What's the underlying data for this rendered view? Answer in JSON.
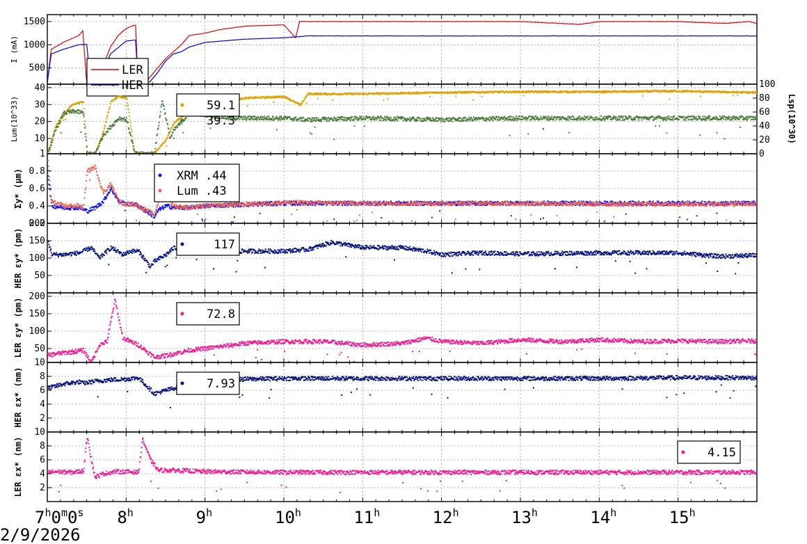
{
  "date_label": "2/9/2026",
  "x_axis": {
    "tick_bases": [
      "7",
      "8",
      "9",
      "10",
      "11",
      "12",
      "13",
      "14",
      "15"
    ],
    "first_tick_parts": [
      "7",
      "h",
      "0",
      "m",
      "0",
      "s"
    ],
    "hour_suffix": "h"
  },
  "colors": {
    "ler_current": "#d40000",
    "her_current": "#0000cc",
    "lsp": "#e0a000",
    "lum": "#4a7a3a",
    "xrm": "#1010ee",
    "lumsize": "#f06050",
    "her_navy": "#00107f",
    "ler_pink": "#f01890"
  },
  "chart_data": [
    {
      "type": "line",
      "panel": "current",
      "ylabel": "I (mA)",
      "yticks": [
        "500",
        "1000",
        "1500"
      ],
      "ylim": [
        150,
        1650
      ],
      "legend": [
        {
          "label": "LER"
        },
        {
          "label": "HER"
        }
      ],
      "series": [
        {
          "name": "LER",
          "color": "#d40000",
          "x": [
            7.0,
            7.05,
            7.2,
            7.4,
            7.45,
            7.5,
            7.55,
            7.6,
            7.65,
            7.72,
            7.8,
            7.9,
            8.0,
            8.1,
            8.12,
            8.15,
            8.25,
            8.3,
            8.4,
            8.5,
            8.6,
            8.7,
            8.8,
            9.0,
            9.2,
            9.5,
            10.0,
            10.15,
            10.2,
            10.3,
            11.0,
            12.0,
            13.0,
            13.75,
            14.0,
            15.0,
            15.6,
            15.9,
            16.0
          ],
          "y": [
            180,
            900,
            1050,
            1200,
            1300,
            180,
            180,
            200,
            300,
            600,
            950,
            1200,
            1350,
            1420,
            1420,
            180,
            180,
            300,
            500,
            700,
            850,
            1000,
            1200,
            1250,
            1330,
            1400,
            1430,
            1150,
            1500,
            1500,
            1500,
            1500,
            1500,
            1440,
            1500,
            1500,
            1460,
            1500,
            1460
          ]
        },
        {
          "name": "HER",
          "color": "#0000cc",
          "x": [
            7.0,
            7.05,
            7.2,
            7.4,
            7.5,
            7.55,
            7.6,
            7.7,
            7.8,
            8.0,
            8.1,
            8.12,
            8.15,
            8.3,
            8.4,
            8.5,
            8.6,
            8.7,
            8.8,
            9.0,
            9.5,
            10.0,
            10.3,
            11.0,
            12.0,
            13.0,
            14.0,
            15.0,
            16.0
          ],
          "y": [
            180,
            800,
            900,
            1000,
            1010,
            180,
            250,
            400,
            800,
            1080,
            1100,
            1100,
            180,
            200,
            400,
            650,
            800,
            850,
            950,
            1050,
            1120,
            1150,
            1190,
            1190,
            1190,
            1190,
            1190,
            1190,
            1190
          ]
        }
      ]
    },
    {
      "type": "scatter",
      "panel": "luminosity",
      "ylabel": "Lum(10^33)",
      "yticks": [
        "1",
        "10",
        "20",
        "30",
        "40"
      ],
      "ylim": [
        1,
        42
      ],
      "y2label": "Lsp(10^30)",
      "y2ticks": [
        "0",
        "20",
        "40",
        "60",
        "80",
        "100"
      ],
      "y2lim": [
        0,
        100
      ],
      "legend": [
        {
          "label": "59.1"
        },
        {
          "label": "39.3"
        }
      ],
      "series": [
        {
          "name": "Lsp",
          "color": "#e0a000",
          "axis": "right",
          "x": [
            7.0,
            7.1,
            7.3,
            7.45,
            7.5,
            7.6,
            7.7,
            7.8,
            7.9,
            8.0,
            8.1,
            8.2,
            8.35,
            8.5,
            8.6,
            8.8,
            9.0,
            9.5,
            10.0,
            10.2,
            10.3,
            11.0,
            12.0,
            13.0,
            14.0,
            15.0,
            15.9
          ],
          "y": [
            0,
            40,
            70,
            75,
            0,
            0,
            30,
            75,
            82,
            80,
            0,
            0,
            0,
            20,
            45,
            60,
            70,
            80,
            82,
            70,
            86,
            86,
            88,
            89,
            89,
            90,
            88
          ]
        },
        {
          "name": "Lum",
          "color": "#4a7a3a",
          "axis": "left",
          "x": [
            7.0,
            7.1,
            7.2,
            7.35,
            7.45,
            7.5,
            7.6,
            7.7,
            7.8,
            7.9,
            8.0,
            8.1,
            8.35,
            8.45,
            8.55,
            8.6,
            8.8,
            9.0,
            9.3,
            9.5,
            10.0,
            10.3,
            11.0,
            12.0,
            13.0,
            14.0,
            15.0,
            16.0
          ],
          "y": [
            1,
            15,
            25,
            26,
            25,
            1,
            1,
            12,
            17,
            22,
            21,
            1,
            1,
            33,
            10,
            15,
            25,
            24,
            22,
            22,
            22,
            21,
            22,
            21,
            22,
            22,
            22,
            22
          ]
        }
      ]
    },
    {
      "type": "scatter",
      "panel": "vertical-beam-size",
      "ylabel": "Σy* (μm)",
      "yticks": [
        "0.2",
        "0.4",
        "0.6",
        "0.8"
      ],
      "ylim": [
        0.2,
        1.0
      ],
      "legend": [
        {
          "label": "XRM",
          "value": ".44"
        },
        {
          "label": "Lum",
          "value": ".43"
        }
      ],
      "series": [
        {
          "name": "XRM",
          "color": "#1010ee",
          "x": [
            7.0,
            7.05,
            7.2,
            7.4,
            7.45,
            7.5,
            7.6,
            7.7,
            7.8,
            7.9,
            8.0,
            8.1,
            8.35,
            8.4,
            8.5,
            8.6,
            8.8,
            9.0,
            10.0,
            11.0,
            12.0,
            13.0,
            14.0,
            15.0,
            16.0
          ],
          "y": [
            0.75,
            0.4,
            0.38,
            0.38,
            0.36,
            0.34,
            0.38,
            0.45,
            0.6,
            0.45,
            0.42,
            0.42,
            0.28,
            0.35,
            0.4,
            0.38,
            0.38,
            0.4,
            0.43,
            0.43,
            0.43,
            0.43,
            0.43,
            0.43,
            0.43
          ]
        },
        {
          "name": "Lum",
          "color": "#f06050",
          "x": [
            7.0,
            7.05,
            7.2,
            7.4,
            7.45,
            7.5,
            7.6,
            7.7,
            7.8,
            7.9,
            8.0,
            8.1,
            8.35,
            8.45,
            8.55,
            8.6,
            8.8,
            9.0,
            10.0,
            11.0,
            12.0,
            13.0,
            14.0,
            15.0,
            16.0
          ],
          "y": [
            0.9,
            0.45,
            0.4,
            0.4,
            0.38,
            0.8,
            0.85,
            0.55,
            0.65,
            0.45,
            0.42,
            0.42,
            0.3,
            0.6,
            0.45,
            0.4,
            0.38,
            0.4,
            0.44,
            0.43,
            0.43,
            0.43,
            0.42,
            0.42,
            0.42
          ]
        }
      ]
    },
    {
      "type": "scatter",
      "panel": "her-vertical-emittance",
      "ylabel": "HER εy* (pm)",
      "yticks": [
        "50",
        "100",
        "150",
        "200"
      ],
      "ylim": [
        0,
        200
      ],
      "legend": [
        {
          "label": "117"
        }
      ],
      "series": [
        {
          "name": "HER εy*",
          "color": "#00107f",
          "x": [
            7.0,
            7.05,
            7.2,
            7.4,
            7.45,
            7.55,
            7.65,
            7.8,
            7.95,
            8.05,
            8.15,
            8.3,
            8.35,
            8.5,
            8.6,
            8.8,
            9.0,
            9.5,
            10.0,
            10.3,
            10.6,
            11.0,
            11.5,
            11.8,
            12.0,
            12.5,
            13.0,
            14.0,
            15.0,
            15.5,
            16.0
          ],
          "y": [
            150,
            110,
            110,
            115,
            120,
            130,
            100,
            130,
            110,
            120,
            120,
            75,
            90,
            110,
            130,
            120,
            115,
            120,
            120,
            125,
            145,
            130,
            130,
            120,
            110,
            115,
            112,
            115,
            115,
            105,
            108
          ]
        }
      ]
    },
    {
      "type": "scatter",
      "panel": "ler-vertical-emittance",
      "ylabel": "LER εy* (pm)",
      "yticks": [
        "10",
        "50",
        "100",
        "150",
        "200"
      ],
      "ylim": [
        10,
        210
      ],
      "legend": [
        {
          "label": "72.8"
        }
      ],
      "series": [
        {
          "name": "LER εy*",
          "color": "#f01890",
          "x": [
            7.0,
            7.1,
            7.3,
            7.45,
            7.55,
            7.65,
            7.75,
            7.85,
            7.95,
            8.05,
            8.15,
            8.35,
            8.5,
            8.6,
            8.8,
            9.0,
            9.5,
            10.0,
            10.5,
            11.0,
            11.5,
            11.8,
            12.0,
            12.5,
            13.0,
            13.5,
            14.0,
            14.5,
            15.0,
            15.5,
            16.0
          ],
          "y": [
            30,
            35,
            40,
            45,
            10,
            60,
            70,
            190,
            80,
            70,
            60,
            25,
            30,
            35,
            45,
            50,
            65,
            70,
            70,
            60,
            65,
            80,
            70,
            65,
            75,
            70,
            75,
            70,
            72,
            70,
            72
          ]
        }
      ]
    },
    {
      "type": "scatter",
      "panel": "her-horizontal-emittance",
      "ylabel": "HER εx* (nm)",
      "yticks": [
        "2",
        "4",
        "6",
        "8"
      ],
      "ylim": [
        0,
        10
      ],
      "legend": [
        {
          "label": "7.93"
        }
      ],
      "series": [
        {
          "name": "HER εx*",
          "color": "#00107f",
          "x": [
            7.0,
            7.1,
            7.2,
            7.4,
            7.45,
            7.6,
            7.8,
            8.0,
            8.15,
            8.35,
            8.5,
            8.7,
            9.0,
            9.5,
            10.0,
            11.0,
            12.0,
            13.0,
            14.0,
            15.0,
            16.0
          ],
          "y": [
            6.3,
            6.6,
            6.9,
            7.2,
            7.0,
            7.3,
            7.5,
            7.6,
            7.8,
            5.5,
            6.0,
            6.6,
            7.2,
            7.6,
            7.7,
            7.7,
            7.7,
            7.7,
            7.7,
            7.8,
            7.8
          ]
        }
      ]
    },
    {
      "type": "scatter",
      "panel": "ler-horizontal-emittance",
      "ylabel": "LER εx* (nm)",
      "yticks": [
        "2",
        "4",
        "6",
        "8",
        "10"
      ],
      "ylim": [
        0,
        10
      ],
      "legend": [
        {
          "label": "4.15"
        }
      ],
      "series": [
        {
          "name": "LER εx*",
          "color": "#f01890",
          "x": [
            7.0,
            7.1,
            7.3,
            7.45,
            7.5,
            7.55,
            7.6,
            7.7,
            7.85,
            8.0,
            8.15,
            8.2,
            8.3,
            8.4,
            8.6,
            9.0,
            10.0,
            11.0,
            12.0,
            13.0,
            14.0,
            15.0,
            16.0
          ],
          "y": [
            4.2,
            4.3,
            4.2,
            4.4,
            9.5,
            6.0,
            3.5,
            4.0,
            4.3,
            4.3,
            4.2,
            9.0,
            6.0,
            4.5,
            4.5,
            4.3,
            4.2,
            4.2,
            4.2,
            4.2,
            4.2,
            4.2,
            4.2
          ]
        }
      ]
    }
  ]
}
